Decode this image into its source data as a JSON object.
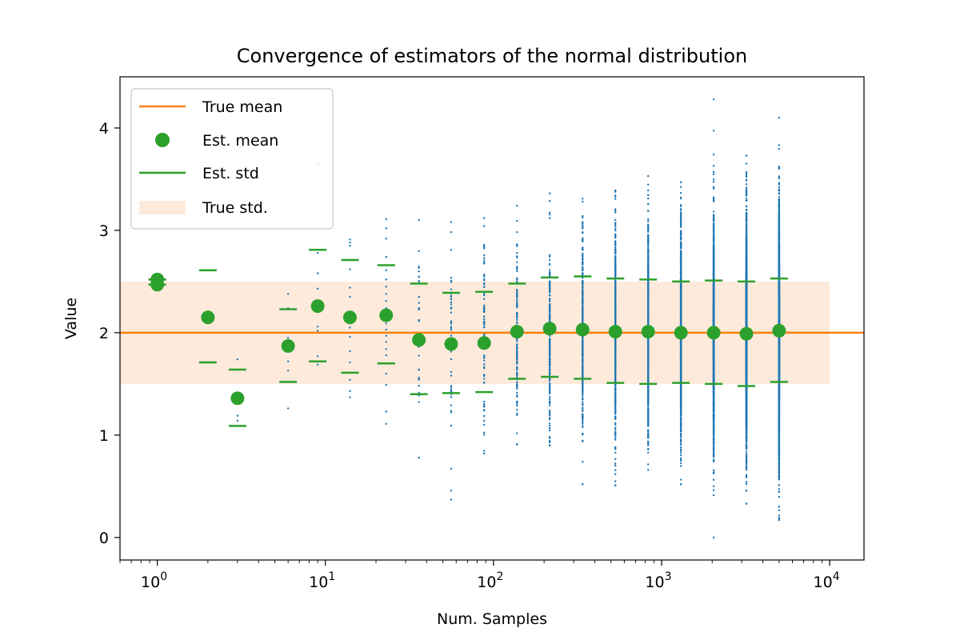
{
  "chart_data": {
    "type": "scatter",
    "title": "Convergence of estimators of the normal distribution",
    "xlabel": "Num. Samples",
    "ylabel": "Value",
    "x_scale": "log",
    "xlim": [
      0.6,
      16000
    ],
    "ylim": [
      -0.22,
      4.5
    ],
    "x_ticks": [
      {
        "value": 1,
        "base": "10",
        "exp": "0"
      },
      {
        "value": 10,
        "base": "10",
        "exp": "1"
      },
      {
        "value": 100,
        "base": "10",
        "exp": "2"
      },
      {
        "value": 1000,
        "base": "10",
        "exp": "3"
      },
      {
        "value": 10000,
        "base": "10",
        "exp": "4"
      }
    ],
    "y_ticks": [
      {
        "value": 0,
        "label": "0"
      },
      {
        "value": 1,
        "label": "1"
      },
      {
        "value": 2,
        "label": "2"
      },
      {
        "value": 3,
        "label": "3"
      },
      {
        "value": 4,
        "label": "4"
      }
    ],
    "grid": false,
    "legend_position": "upper-left",
    "legend": [
      {
        "kind": "line",
        "label": "True mean",
        "color": "#ff7f0e"
      },
      {
        "kind": "marker",
        "label": "Est. mean",
        "color": "#2ca02c"
      },
      {
        "kind": "line",
        "label": "Est. std",
        "color": "#2ca02c"
      },
      {
        "kind": "patch",
        "label": "True std.",
        "color": "#fdeadb"
      }
    ],
    "true_mean": 2.0,
    "true_std_band": {
      "low": 1.5,
      "high": 2.5,
      "x_from": 0.6,
      "x_to": 10000
    },
    "sample_color": "#1f77b4",
    "estimates": [
      {
        "n": 1,
        "mean": 2.52,
        "std_low": 2.52,
        "std_high": 2.52
      },
      {
        "n": 1,
        "mean": 2.47,
        "std_low": 2.47,
        "std_high": 2.47
      },
      {
        "n": 2,
        "mean": 2.15,
        "std_low": 1.71,
        "std_high": 2.61
      },
      {
        "n": 3,
        "mean": 1.36,
        "std_low": 1.09,
        "std_high": 1.64
      },
      {
        "n": 6,
        "mean": 1.87,
        "std_low": 1.52,
        "std_high": 2.23
      },
      {
        "n": 9,
        "mean": 2.26,
        "std_low": 1.72,
        "std_high": 2.81
      },
      {
        "n": 14,
        "mean": 2.15,
        "std_low": 1.61,
        "std_high": 2.71
      },
      {
        "n": 23,
        "mean": 2.17,
        "std_low": 1.7,
        "std_high": 2.66
      },
      {
        "n": 36,
        "mean": 1.93,
        "std_low": 1.4,
        "std_high": 2.48
      },
      {
        "n": 56,
        "mean": 1.89,
        "std_low": 1.41,
        "std_high": 2.39
      },
      {
        "n": 88,
        "mean": 1.9,
        "std_low": 1.42,
        "std_high": 2.4
      },
      {
        "n": 138,
        "mean": 2.01,
        "std_low": 1.55,
        "std_high": 2.48
      },
      {
        "n": 216,
        "mean": 2.04,
        "std_low": 1.57,
        "std_high": 2.54
      },
      {
        "n": 339,
        "mean": 2.03,
        "std_low": 1.55,
        "std_high": 2.55
      },
      {
        "n": 531,
        "mean": 2.01,
        "std_low": 1.51,
        "std_high": 2.53
      },
      {
        "n": 832,
        "mean": 2.01,
        "std_low": 1.5,
        "std_high": 2.52
      },
      {
        "n": 1303,
        "mean": 2.0,
        "std_low": 1.51,
        "std_high": 2.5
      },
      {
        "n": 2041,
        "mean": 2.0,
        "std_low": 1.5,
        "std_high": 2.51
      },
      {
        "n": 3197,
        "mean": 1.99,
        "std_low": 1.48,
        "std_high": 2.5
      },
      {
        "n": 5000,
        "mean": 2.02,
        "std_low": 1.52,
        "std_high": 2.53
      }
    ],
    "sample_columns": [
      {
        "n": 1,
        "values": [
          2.52
        ]
      },
      {
        "n": 2,
        "values": [
          2.61,
          1.71
        ]
      },
      {
        "n": 3,
        "values": [
          1.74,
          1.19,
          1.14
        ]
      },
      {
        "n": 6,
        "values": [
          2.38,
          2.24,
          1.95,
          1.72,
          1.63,
          1.26
        ]
      },
      {
        "n": 9,
        "values": [
          3.65,
          2.78,
          2.58,
          2.43,
          2.25,
          2.06,
          2.02,
          1.77,
          1.69
        ]
      },
      {
        "n": 14,
        "values": [
          2.91,
          2.88,
          2.85,
          2.62,
          2.44,
          2.35,
          2.2,
          2.05,
          1.96,
          1.82,
          1.71,
          1.54,
          1.43,
          1.37
        ]
      },
      {
        "n": 23,
        "values": [
          3.11,
          3.02,
          2.92,
          2.74,
          2.61,
          2.52,
          2.45,
          2.38,
          2.31,
          2.24,
          2.19,
          2.15,
          2.09,
          2.03,
          1.97,
          1.91,
          1.84,
          1.78,
          1.7,
          1.6,
          1.49,
          1.23,
          1.11
        ]
      },
      {
        "n": 36,
        "min": 0.78,
        "max": 3.1,
        "count": 36,
        "seed": 11
      },
      {
        "n": 56,
        "min": 0.37,
        "max": 3.08,
        "count": 56,
        "seed": 12
      },
      {
        "n": 88,
        "min": 0.82,
        "max": 3.12,
        "count": 88,
        "seed": 13
      },
      {
        "n": 138,
        "min": 0.91,
        "max": 3.24,
        "count": 138,
        "seed": 14
      },
      {
        "n": 216,
        "min": 0.9,
        "max": 3.36,
        "count": 216,
        "seed": 15
      },
      {
        "n": 339,
        "min": 0.52,
        "max": 3.31,
        "count": 339,
        "seed": 16
      },
      {
        "n": 531,
        "min": 0.51,
        "max": 3.39,
        "count": 531,
        "seed": 17
      },
      {
        "n": 832,
        "min": 0.66,
        "max": 3.53,
        "count": 832,
        "seed": 18
      },
      {
        "n": 1303,
        "min": 0.52,
        "max": 3.47,
        "count": 1303,
        "seed": 19
      },
      {
        "n": 2041,
        "min": 0.0,
        "max": 4.28,
        "count": 2041,
        "seed": 20
      },
      {
        "n": 3197,
        "min": 0.33,
        "max": 3.73,
        "count": 3197,
        "seed": 21
      },
      {
        "n": 5000,
        "min": 0.17,
        "max": 4.1,
        "count": 5000,
        "seed": 22
      }
    ]
  }
}
